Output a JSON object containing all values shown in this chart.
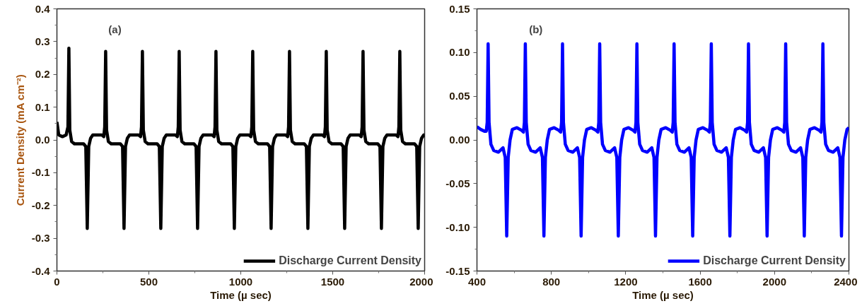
{
  "chart_data": [
    {
      "type": "line",
      "annotations": [
        "(a)"
      ],
      "xlabel": "Time (µ sec)",
      "ylabel": "Current Density (mA cm⁻²)",
      "xlim": [
        0,
        2000
      ],
      "ylim": [
        -0.4,
        0.4
      ],
      "xticks": [
        0,
        500,
        1000,
        1500,
        2000
      ],
      "yticks": [
        -0.4,
        -0.3,
        -0.2,
        -0.1,
        {
          "value": 0,
          "label": "0.0"
        },
        0.1,
        0.2,
        0.3,
        0.4
      ],
      "grid": false,
      "legend": "bottom right",
      "marker": "none",
      "line_style": "solid",
      "x": [
        0,
        10,
        30,
        50,
        60,
        65,
        70,
        80,
        95,
        145,
        157,
        165,
        173,
        183,
        195,
        245,
        255,
        260,
        265,
        270,
        280,
        295,
        345,
        357,
        365,
        373,
        383,
        395,
        445,
        455,
        460,
        465,
        470,
        480,
        495,
        545,
        557,
        565,
        573,
        583,
        595,
        645,
        655,
        660,
        665,
        670,
        680,
        695,
        745,
        757,
        765,
        773,
        783,
        795,
        845,
        855,
        860,
        865,
        870,
        880,
        895,
        945,
        957,
        965,
        973,
        983,
        995,
        1045,
        1055,
        1060,
        1065,
        1070,
        1080,
        1095,
        1145,
        1157,
        1165,
        1173,
        1183,
        1195,
        1245,
        1255,
        1260,
        1265,
        1270,
        1280,
        1295,
        1345,
        1357,
        1365,
        1373,
        1383,
        1395,
        1445,
        1455,
        1460,
        1465,
        1470,
        1480,
        1495,
        1545,
        1557,
        1565,
        1573,
        1583,
        1595,
        1645,
        1655,
        1660,
        1665,
        1670,
        1680,
        1695,
        1745,
        1757,
        1765,
        1773,
        1783,
        1795,
        1845,
        1855,
        1860,
        1865,
        1870,
        1880,
        1895,
        1945,
        1957,
        1965,
        1973,
        1983,
        1995,
        2000
      ],
      "series": [
        {
          "name": "Discharge Current Density",
          "color": "#000000",
          "values": [
            0.055,
            0.015,
            0.01,
            0.015,
            0.04,
            0.28,
            0.03,
            -0.005,
            -0.012,
            -0.012,
            -0.02,
            -0.27,
            -0.02,
            0.005,
            0.015,
            0.015,
            0.01,
            0.04,
            0.27,
            0.03,
            -0.005,
            -0.012,
            -0.012,
            -0.02,
            -0.27,
            -0.02,
            0.005,
            0.015,
            0.015,
            0.01,
            0.04,
            0.27,
            0.03,
            -0.005,
            -0.012,
            -0.012,
            -0.02,
            -0.27,
            -0.02,
            0.005,
            0.015,
            0.015,
            0.01,
            0.04,
            0.27,
            0.03,
            -0.005,
            -0.012,
            -0.012,
            -0.02,
            -0.27,
            -0.02,
            0.005,
            0.015,
            0.015,
            0.01,
            0.04,
            0.27,
            0.03,
            -0.005,
            -0.012,
            -0.012,
            -0.02,
            -0.27,
            -0.02,
            0.005,
            0.015,
            0.015,
            0.01,
            0.04,
            0.27,
            0.03,
            -0.005,
            -0.012,
            -0.012,
            -0.02,
            -0.27,
            -0.02,
            0.005,
            0.015,
            0.015,
            0.01,
            0.04,
            0.27,
            0.03,
            -0.005,
            -0.012,
            -0.012,
            -0.02,
            -0.27,
            -0.02,
            0.005,
            0.015,
            0.015,
            0.01,
            0.04,
            0.27,
            0.03,
            -0.005,
            -0.012,
            -0.012,
            -0.02,
            -0.27,
            -0.02,
            0.005,
            0.015,
            0.015,
            0.01,
            0.04,
            0.27,
            0.03,
            -0.005,
            -0.012,
            -0.012,
            -0.02,
            -0.27,
            -0.02,
            0.005,
            0.015,
            0.015,
            0.01,
            0.04,
            0.27,
            0.03,
            -0.005,
            -0.012,
            -0.012,
            -0.02,
            -0.27,
            -0.02,
            0.005,
            0.015,
            0.015
          ]
        }
      ]
    },
    {
      "type": "line",
      "annotations": [
        "(b)"
      ],
      "xlabel": "Time (µ sec)",
      "xlim": [
        400,
        2400
      ],
      "ylim": [
        -0.15,
        0.15
      ],
      "xticks": [
        400,
        800,
        1200,
        1600,
        2000,
        2400
      ],
      "yticks": [
        -0.15,
        {
          "value": -0.1,
          "label": "-0.10"
        },
        -0.05,
        {
          "value": 0,
          "label": "0.00"
        },
        0.05,
        {
          "value": 0.1,
          "label": "0.10"
        },
        0.15
      ],
      "grid": false,
      "legend": "bottom right",
      "marker": "none",
      "line_style": "solid",
      "x": [
        400,
        420,
        440,
        450,
        455,
        460,
        465,
        475,
        490,
        515,
        540,
        552,
        560,
        568,
        578,
        590,
        615,
        640,
        650,
        655,
        660,
        665,
        675,
        690,
        715,
        740,
        752,
        760,
        768,
        778,
        790,
        815,
        840,
        850,
        855,
        860,
        865,
        875,
        890,
        915,
        940,
        952,
        960,
        968,
        978,
        990,
        1015,
        1040,
        1050,
        1055,
        1060,
        1065,
        1075,
        1090,
        1115,
        1140,
        1152,
        1160,
        1168,
        1178,
        1190,
        1215,
        1240,
        1250,
        1255,
        1260,
        1265,
        1275,
        1290,
        1315,
        1340,
        1352,
        1360,
        1368,
        1378,
        1390,
        1415,
        1440,
        1450,
        1455,
        1460,
        1465,
        1475,
        1490,
        1515,
        1540,
        1552,
        1560,
        1568,
        1578,
        1590,
        1615,
        1640,
        1650,
        1655,
        1660,
        1665,
        1675,
        1690,
        1715,
        1740,
        1752,
        1760,
        1768,
        1778,
        1790,
        1815,
        1840,
        1850,
        1855,
        1860,
        1865,
        1875,
        1890,
        1915,
        1940,
        1952,
        1960,
        1968,
        1978,
        1990,
        2015,
        2040,
        2050,
        2055,
        2060,
        2065,
        2075,
        2090,
        2115,
        2140,
        2152,
        2160,
        2168,
        2178,
        2190,
        2215,
        2240,
        2250,
        2255,
        2260,
        2265,
        2275,
        2290,
        2315,
        2340,
        2352,
        2360,
        2368,
        2378,
        2390,
        2400
      ],
      "series": [
        {
          "name": "Discharge Current Density",
          "color": "#0000ff",
          "values": [
            0.015,
            0.012,
            0.01,
            0.01,
            0.02,
            0.11,
            0.02,
            -0.005,
            -0.012,
            -0.014,
            -0.009,
            -0.02,
            -0.11,
            -0.02,
            0.0,
            0.012,
            0.014,
            0.011,
            0.009,
            0.02,
            0.11,
            0.02,
            -0.005,
            -0.012,
            -0.014,
            -0.009,
            -0.02,
            -0.11,
            -0.02,
            0.0,
            0.012,
            0.014,
            0.011,
            0.009,
            0.02,
            0.11,
            0.02,
            -0.005,
            -0.012,
            -0.014,
            -0.009,
            -0.02,
            -0.11,
            -0.02,
            0.0,
            0.012,
            0.014,
            0.011,
            0.009,
            0.02,
            0.11,
            0.02,
            -0.005,
            -0.012,
            -0.014,
            -0.009,
            -0.02,
            -0.11,
            -0.02,
            0.0,
            0.012,
            0.014,
            0.011,
            0.009,
            0.02,
            0.11,
            0.02,
            -0.005,
            -0.012,
            -0.014,
            -0.009,
            -0.02,
            -0.11,
            -0.02,
            0.0,
            0.012,
            0.014,
            0.011,
            0.009,
            0.02,
            0.11,
            0.02,
            -0.005,
            -0.012,
            -0.014,
            -0.009,
            -0.02,
            -0.11,
            -0.02,
            0.0,
            0.012,
            0.014,
            0.011,
            0.009,
            0.02,
            0.11,
            0.02,
            -0.005,
            -0.012,
            -0.014,
            -0.009,
            -0.02,
            -0.11,
            -0.02,
            0.0,
            0.012,
            0.014,
            0.011,
            0.009,
            0.02,
            0.11,
            0.02,
            -0.005,
            -0.012,
            -0.014,
            -0.009,
            -0.02,
            -0.11,
            -0.02,
            0.0,
            0.012,
            0.014,
            0.011,
            0.009,
            0.02,
            0.11,
            0.02,
            -0.005,
            -0.012,
            -0.014,
            -0.009,
            -0.02,
            -0.11,
            -0.02,
            0.0,
            0.012,
            0.014,
            0.011,
            0.009,
            0.02,
            0.11,
            0.02,
            -0.005,
            -0.012,
            -0.014,
            -0.009,
            -0.02,
            -0.11,
            -0.02,
            0.0,
            0.012,
            0.014
          ]
        }
      ]
    }
  ]
}
